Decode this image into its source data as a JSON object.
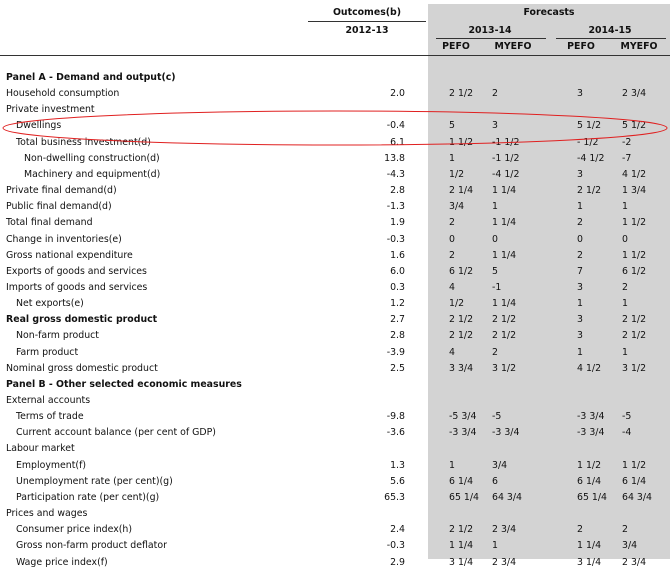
{
  "header": {
    "outcomes": "Outcomes(b)",
    "forecasts": "Forecasts",
    "year_outcome": "2012-13",
    "year_1": "2013-14",
    "year_2": "2014-15",
    "pefo_1": "PEFO",
    "myefo_1": "MYEFO",
    "pefo_2": "PEFO",
    "myefo_2": "MYEFO"
  },
  "rows": [
    {
      "label": "Panel A - Demand and output(c)",
      "bold": true,
      "indent": 0,
      "values": [
        "",
        "",
        "",
        "",
        ""
      ]
    },
    {
      "label": "Household consumption",
      "bold": false,
      "indent": 0,
      "values": [
        "2.0",
        "2 1/2",
        "2",
        "3",
        "2 3/4"
      ]
    },
    {
      "label": "Private investment",
      "bold": false,
      "indent": 0,
      "values": [
        "",
        "",
        "",
        "",
        ""
      ]
    },
    {
      "label": "Dwellings",
      "bold": false,
      "indent": 1,
      "values": [
        "-0.4",
        "5",
        "3",
        "5 1/2",
        "5 1/2"
      ]
    },
    {
      "label": "Total business investment(d)",
      "bold": false,
      "indent": 1,
      "values": [
        "6.1",
        "1 1/2",
        "-1 1/2",
        "- 1/2",
        "-2"
      ]
    },
    {
      "label": "Non-dwelling construction(d)",
      "bold": false,
      "indent": 2,
      "values": [
        "13.8",
        "1",
        "-1 1/2",
        "-4 1/2",
        "-7"
      ]
    },
    {
      "label": "Machinery and equipment(d)",
      "bold": false,
      "indent": 2,
      "values": [
        "-4.3",
        "1/2",
        "-4 1/2",
        "3",
        "4 1/2"
      ]
    },
    {
      "label": "Private final demand(d)",
      "bold": false,
      "indent": 0,
      "values": [
        "2.8",
        "2 1/4",
        "1 1/4",
        "2 1/2",
        "1 3/4"
      ]
    },
    {
      "label": "Public final demand(d)",
      "bold": false,
      "indent": 0,
      "values": [
        "-1.3",
        "3/4",
        "1",
        "1",
        "1"
      ]
    },
    {
      "label": "Total final demand",
      "bold": false,
      "indent": 0,
      "values": [
        "1.9",
        "2",
        "1 1/4",
        "2",
        "1 1/2"
      ]
    },
    {
      "label": "Change in inventories(e)",
      "bold": false,
      "indent": 0,
      "values": [
        "-0.3",
        "0",
        "0",
        "0",
        "0"
      ]
    },
    {
      "label": "Gross national expenditure",
      "bold": false,
      "indent": 0,
      "values": [
        "1.6",
        "2",
        "1 1/4",
        "2",
        "1 1/2"
      ]
    },
    {
      "label": "Exports of goods and services",
      "bold": false,
      "indent": 0,
      "values": [
        "6.0",
        "6 1/2",
        "5",
        "7",
        "6 1/2"
      ]
    },
    {
      "label": "Imports of goods and services",
      "bold": false,
      "indent": 0,
      "values": [
        "0.3",
        "4",
        "-1",
        "3",
        "2"
      ]
    },
    {
      "label": "Net exports(e)",
      "bold": false,
      "indent": 1,
      "values": [
        "1.2",
        "1/2",
        "1 1/4",
        "1",
        "1"
      ]
    },
    {
      "label": "Real gross domestic product",
      "bold": true,
      "indent": 0,
      "values": [
        "2.7",
        "2 1/2",
        "2 1/2",
        "3",
        "2 1/2"
      ]
    },
    {
      "label": "Non-farm product",
      "bold": false,
      "indent": 1,
      "values": [
        "2.8",
        "2 1/2",
        "2 1/2",
        "3",
        "2 1/2"
      ]
    },
    {
      "label": "Farm product",
      "bold": false,
      "indent": 1,
      "values": [
        "-3.9",
        "4",
        "2",
        "1",
        "1"
      ]
    },
    {
      "label": "Nominal gross domestic product",
      "bold": false,
      "indent": 0,
      "values": [
        "2.5",
        "3 3/4",
        "3 1/2",
        "4 1/2",
        "3 1/2"
      ]
    },
    {
      "label": "Panel B - Other selected economic measures",
      "bold": true,
      "indent": 0,
      "values": [
        "",
        "",
        "",
        "",
        ""
      ]
    },
    {
      "label": "External accounts",
      "bold": false,
      "indent": 0,
      "values": [
        "",
        "",
        "",
        "",
        ""
      ]
    },
    {
      "label": "Terms of trade",
      "bold": false,
      "indent": 1,
      "values": [
        "-9.8",
        "-5 3/4",
        "-5",
        "-3 3/4",
        "-5"
      ]
    },
    {
      "label": "Current account balance (per cent of GDP)",
      "bold": false,
      "indent": 1,
      "values": [
        "-3.6",
        "-3 3/4",
        "-3 3/4",
        "-3 3/4",
        "-4"
      ]
    },
    {
      "label": "Labour market",
      "bold": false,
      "indent": 0,
      "values": [
        "",
        "",
        "",
        "",
        ""
      ]
    },
    {
      "label": "Employment(f)",
      "bold": false,
      "indent": 1,
      "values": [
        "1.3",
        "1",
        "3/4",
        "1 1/2",
        "1 1/2"
      ]
    },
    {
      "label": "Unemployment rate (per cent)(g)",
      "bold": false,
      "indent": 1,
      "values": [
        "5.6",
        "6 1/4",
        "6",
        "6 1/4",
        "6 1/4"
      ]
    },
    {
      "label": "Participation rate (per cent)(g)",
      "bold": false,
      "indent": 1,
      "values": [
        "65.3",
        "65 1/4",
        "64 3/4",
        "65 1/4",
        "64 3/4"
      ]
    },
    {
      "label": "Prices and wages",
      "bold": false,
      "indent": 0,
      "values": [
        "",
        "",
        "",
        "",
        ""
      ]
    },
    {
      "label": "Consumer price index(h)",
      "bold": false,
      "indent": 1,
      "values": [
        "2.4",
        "2 1/2",
        "2 3/4",
        "2",
        "2"
      ]
    },
    {
      "label": "Gross non-farm product deflator",
      "bold": false,
      "indent": 1,
      "values": [
        "-0.3",
        "1 1/4",
        "1",
        "1 1/4",
        "3/4"
      ]
    },
    {
      "label": "Wage price index(f)",
      "bold": false,
      "indent": 1,
      "values": [
        "2.9",
        "3 1/4",
        "2 3/4",
        "3 1/4",
        "2 3/4"
      ]
    }
  ],
  "colors": {
    "forecast_shade": "#d3d3d3",
    "annotation_ellipse": "#e02020"
  }
}
